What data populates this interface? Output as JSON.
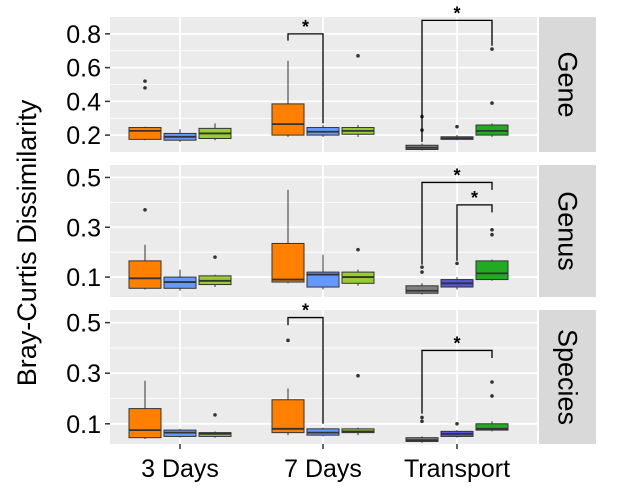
{
  "chart_data": {
    "type": "box",
    "ylabel": "Bray-Curtis Dissimilarity",
    "categories": [
      "3 Days",
      "7 Days",
      "Transport"
    ],
    "colors": {
      "3 Days": [
        "#FF8000",
        "#6699FF",
        "#99CC33"
      ],
      "7 Days": [
        "#FF8000",
        "#6699FF",
        "#99CC33"
      ],
      "Transport": [
        "#808080",
        "#5555DD",
        "#22AA22"
      ]
    },
    "panels": [
      {
        "strip": "Gene",
        "ylim": [
          0.1,
          0.9
        ],
        "yticks": [
          0.2,
          0.4,
          0.6,
          0.8
        ],
        "ytick_labels": [
          "0.2",
          "0.4",
          "0.6",
          "0.8"
        ],
        "boxes": [
          {
            "group": "3 Days",
            "min": 0.17,
            "q1": 0.175,
            "median": 0.225,
            "q3": 0.245,
            "max": 0.25,
            "outliers": [
              0.48,
              0.52
            ]
          },
          {
            "group": "3 Days",
            "min": 0.16,
            "q1": 0.17,
            "median": 0.19,
            "q3": 0.21,
            "max": 0.235,
            "outliers": []
          },
          {
            "group": "3 Days",
            "min": 0.17,
            "q1": 0.18,
            "median": 0.21,
            "q3": 0.24,
            "max": 0.27,
            "outliers": []
          },
          {
            "group": "7 Days",
            "min": 0.19,
            "q1": 0.2,
            "median": 0.265,
            "q3": 0.385,
            "max": 0.64,
            "outliers": []
          },
          {
            "group": "7 Days",
            "min": 0.19,
            "q1": 0.2,
            "median": 0.22,
            "q3": 0.245,
            "max": 0.26,
            "outliers": []
          },
          {
            "group": "7 Days",
            "min": 0.19,
            "q1": 0.205,
            "median": 0.225,
            "q3": 0.245,
            "max": 0.26,
            "outliers": [
              0.67
            ]
          },
          {
            "group": "Transport",
            "min": 0.11,
            "q1": 0.115,
            "median": 0.125,
            "q3": 0.14,
            "max": 0.15,
            "outliers": [
              0.23,
              0.31
            ]
          },
          {
            "group": "Transport",
            "min": 0.17,
            "q1": 0.175,
            "median": 0.18,
            "q3": 0.19,
            "max": 0.2,
            "outliers": [
              0.25
            ]
          },
          {
            "group": "Transport",
            "min": 0.19,
            "q1": 0.2,
            "median": 0.225,
            "q3": 0.26,
            "max": 0.27,
            "outliers": [
              0.39,
              0.71
            ]
          }
        ],
        "brackets": [
          {
            "from_box": 3,
            "to_box": 4,
            "y_top": 0.8,
            "y_left_end": 0.76,
            "y_right_end": 0.27,
            "label": "*"
          },
          {
            "from_box": 6,
            "to_box": 8,
            "y_top": 0.88,
            "y_left_end": 0.16,
            "y_right_end": 0.73,
            "label": "*"
          }
        ]
      },
      {
        "strip": "Genus",
        "ylim": [
          0.02,
          0.55
        ],
        "yticks": [
          0.1,
          0.3,
          0.5
        ],
        "ytick_labels": [
          "0.1",
          "0.3",
          "0.5"
        ],
        "boxes": [
          {
            "group": "3 Days",
            "min": 0.05,
            "q1": 0.055,
            "median": 0.095,
            "q3": 0.165,
            "max": 0.23,
            "outliers": [
              0.37
            ]
          },
          {
            "group": "3 Days",
            "min": 0.045,
            "q1": 0.055,
            "median": 0.08,
            "q3": 0.1,
            "max": 0.13,
            "outliers": []
          },
          {
            "group": "3 Days",
            "min": 0.06,
            "q1": 0.07,
            "median": 0.085,
            "q3": 0.105,
            "max": 0.11,
            "outliers": [
              0.18
            ]
          },
          {
            "group": "7 Days",
            "min": 0.075,
            "q1": 0.08,
            "median": 0.09,
            "q3": 0.235,
            "max": 0.45,
            "outliers": []
          },
          {
            "group": "7 Days",
            "min": 0.05,
            "q1": 0.06,
            "median": 0.11,
            "q3": 0.12,
            "max": 0.19,
            "outliers": []
          },
          {
            "group": "7 Days",
            "min": 0.065,
            "q1": 0.075,
            "median": 0.1,
            "q3": 0.12,
            "max": 0.13,
            "outliers": [
              0.21
            ]
          },
          {
            "group": "Transport",
            "min": 0.03,
            "q1": 0.035,
            "median": 0.045,
            "q3": 0.065,
            "max": 0.075,
            "outliers": [
              0.12,
              0.14
            ]
          },
          {
            "group": "Transport",
            "min": 0.05,
            "q1": 0.06,
            "median": 0.075,
            "q3": 0.09,
            "max": 0.1,
            "outliers": [
              0.155
            ]
          },
          {
            "group": "Transport",
            "min": 0.085,
            "q1": 0.09,
            "median": 0.115,
            "q3": 0.165,
            "max": 0.17,
            "outliers": [
              0.27,
              0.29
            ]
          }
        ],
        "brackets": [
          {
            "from_box": 6,
            "to_box": 8,
            "y_top": 0.48,
            "y_left_end": 0.15,
            "y_right_end": 0.45,
            "label": "*"
          },
          {
            "from_box": 7,
            "to_box": 8,
            "y_top": 0.39,
            "y_left_end": 0.165,
            "y_right_end": 0.36,
            "label": "*"
          }
        ]
      },
      {
        "strip": "Species",
        "ylim": [
          0.02,
          0.55
        ],
        "yticks": [
          0.1,
          0.3,
          0.5
        ],
        "ytick_labels": [
          "0.1",
          "0.3",
          "0.5"
        ],
        "boxes": [
          {
            "group": "3 Days",
            "min": 0.04,
            "q1": 0.045,
            "median": 0.075,
            "q3": 0.16,
            "max": 0.27,
            "outliers": []
          },
          {
            "group": "3 Days",
            "min": 0.045,
            "q1": 0.05,
            "median": 0.065,
            "q3": 0.075,
            "max": 0.08,
            "outliers": []
          },
          {
            "group": "3 Days",
            "min": 0.045,
            "q1": 0.05,
            "median": 0.06,
            "q3": 0.065,
            "max": 0.07,
            "outliers": [
              0.135
            ]
          },
          {
            "group": "7 Days",
            "min": 0.055,
            "q1": 0.065,
            "median": 0.08,
            "q3": 0.195,
            "max": 0.24,
            "outliers": [
              0.43
            ]
          },
          {
            "group": "7 Days",
            "min": 0.05,
            "q1": 0.055,
            "median": 0.065,
            "q3": 0.08,
            "max": 0.085,
            "outliers": []
          },
          {
            "group": "7 Days",
            "min": 0.055,
            "q1": 0.065,
            "median": 0.07,
            "q3": 0.08,
            "max": 0.085,
            "outliers": [
              0.29
            ]
          },
          {
            "group": "Transport",
            "min": 0.025,
            "q1": 0.03,
            "median": 0.035,
            "q3": 0.045,
            "max": 0.05,
            "outliers": [
              0.11,
              0.125
            ]
          },
          {
            "group": "Transport",
            "min": 0.045,
            "q1": 0.05,
            "median": 0.06,
            "q3": 0.07,
            "max": 0.075,
            "outliers": [
              0.1
            ]
          },
          {
            "group": "Transport",
            "min": 0.07,
            "q1": 0.075,
            "median": 0.08,
            "q3": 0.1,
            "max": 0.11,
            "outliers": [
              0.21,
              0.265
            ]
          }
        ],
        "brackets": [
          {
            "from_box": 3,
            "to_box": 4,
            "y_top": 0.52,
            "y_left_end": 0.49,
            "y_right_end": 0.1,
            "label": "*"
          },
          {
            "from_box": 6,
            "to_box": 8,
            "y_top": 0.39,
            "y_left_end": 0.14,
            "y_right_end": 0.36,
            "label": "*"
          }
        ]
      }
    ]
  }
}
